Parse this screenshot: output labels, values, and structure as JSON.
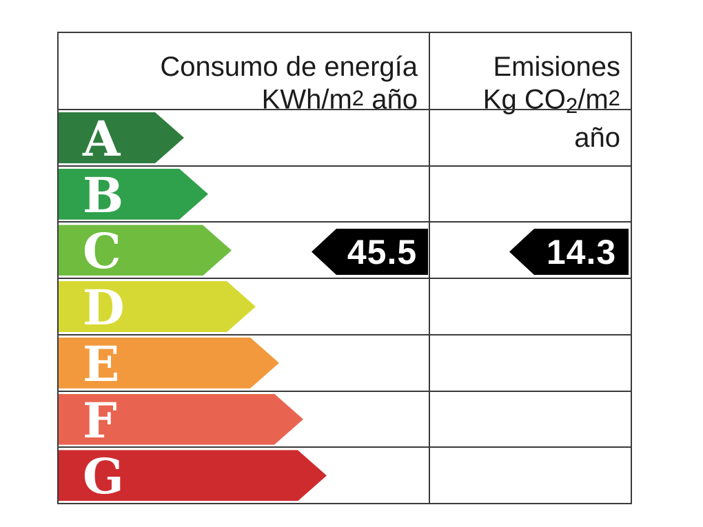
{
  "table": {
    "border_color": "#3a3a3a",
    "header": {
      "consumo": {
        "line1": "Consumo de energía",
        "line2_pre": "KWh/m",
        "line2_sup": "2",
        "line2_post": " año"
      },
      "emisiones": {
        "line1": "Emisiones",
        "line2_pre": "Kg CO",
        "line2_sub": "2",
        "line2_mid": "/m",
        "line2_sup": "2",
        "line2_post": " año"
      }
    },
    "rows": [
      {
        "letter": "A",
        "color": "#2e7d3e"
      },
      {
        "letter": "B",
        "color": "#2fa04b"
      },
      {
        "letter": "C",
        "color": "#6fbc3f"
      },
      {
        "letter": "D",
        "color": "#d6d933"
      },
      {
        "letter": "E",
        "color": "#f2993e"
      },
      {
        "letter": "F",
        "color": "#e96450"
      },
      {
        "letter": "G",
        "color": "#ce2b2e"
      }
    ],
    "values": {
      "rating": "C",
      "consumo": "45.5",
      "emisiones": "14.3",
      "arrow_color": "#000000",
      "text_color": "#ffffff"
    }
  },
  "chart_data": {
    "type": "table",
    "title": "",
    "columns": [
      "Consumo de energía KWh/m2 año",
      "Emisiones Kg CO2/m2 año"
    ],
    "rating_scale": [
      "A",
      "B",
      "C",
      "D",
      "E",
      "F",
      "G"
    ],
    "scale_colors": [
      "#2e7d3e",
      "#2fa04b",
      "#6fbc3f",
      "#d6d933",
      "#f2993e",
      "#e96450",
      "#ce2b2e"
    ],
    "selected_rating": "C",
    "values": {
      "consumo_kwh_m2_ano": 45.5,
      "emisiones_kg_co2_m2_ano": 14.3
    },
    "layout_hints": {
      "orientation": "horizontal-right-pointing-scale-arrows",
      "value_arrows": "black, left-pointing, aligned with rating C row",
      "arrow_lengths_increase_from_A_to_G": true,
      "legend_position": "none",
      "grid": "table borders on"
    }
  }
}
